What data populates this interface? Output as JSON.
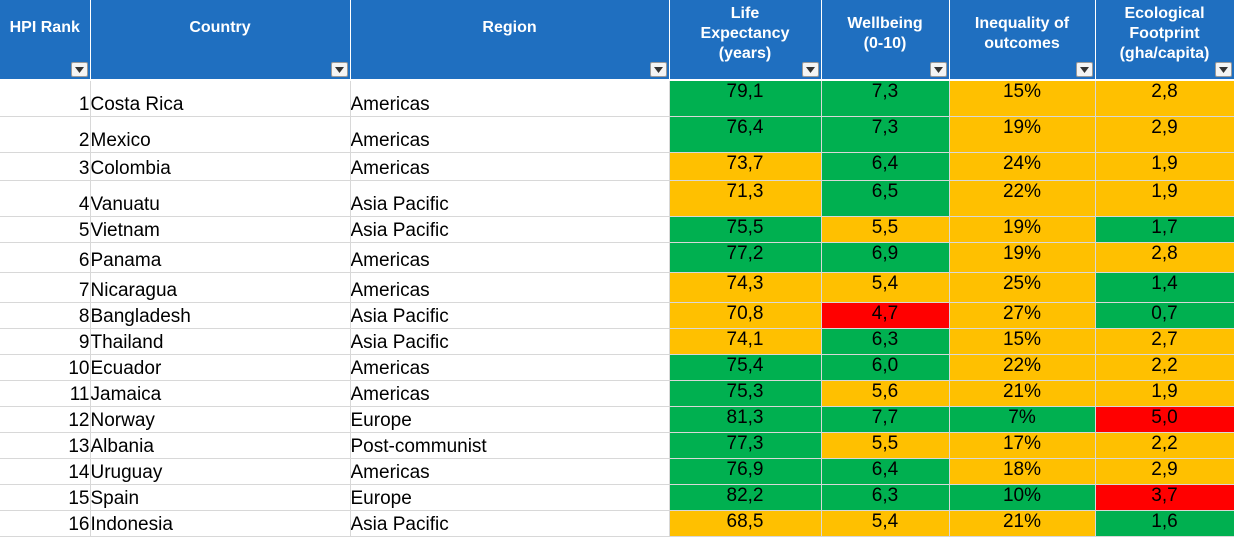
{
  "columns": [
    {
      "key": "rank",
      "label": "HPI Rank"
    },
    {
      "key": "country",
      "label": "Country"
    },
    {
      "key": "region",
      "label": "Region"
    },
    {
      "key": "life",
      "label": "Life Expectancy (years)"
    },
    {
      "key": "wellbeing",
      "label": "Wellbeing (0-10)"
    },
    {
      "key": "inequality",
      "label": "Inequality of outcomes"
    },
    {
      "key": "footprint",
      "label": "Ecological Footprint (gha/capita)"
    }
  ],
  "filter_icon": "dropdown-arrow-icon",
  "colors": {
    "header": "#1f6fc0",
    "good": "#00b050",
    "mid": "#ffc000",
    "bad": "#ff0000"
  },
  "rows": [
    {
      "rank": "1",
      "country": "Costa Rica",
      "region": "Americas",
      "life": "79,1",
      "life_s": "good",
      "wellbeing": "7,3",
      "wellbeing_s": "good",
      "inequality": "15%",
      "inequality_s": "mid",
      "footprint": "2,8",
      "footprint_s": "mid"
    },
    {
      "rank": "2",
      "country": "Mexico",
      "region": "Americas",
      "life": "76,4",
      "life_s": "good",
      "wellbeing": "7,3",
      "wellbeing_s": "good",
      "inequality": "19%",
      "inequality_s": "mid",
      "footprint": "2,9",
      "footprint_s": "mid"
    },
    {
      "rank": "3",
      "country": "Colombia",
      "region": "Americas",
      "life": "73,7",
      "life_s": "mid",
      "wellbeing": "6,4",
      "wellbeing_s": "good",
      "inequality": "24%",
      "inequality_s": "mid",
      "footprint": "1,9",
      "footprint_s": "mid"
    },
    {
      "rank": "4",
      "country": "Vanuatu",
      "region": "Asia Pacific",
      "life": "71,3",
      "life_s": "mid",
      "wellbeing": "6,5",
      "wellbeing_s": "good",
      "inequality": "22%",
      "inequality_s": "mid",
      "footprint": "1,9",
      "footprint_s": "mid"
    },
    {
      "rank": "5",
      "country": "Vietnam",
      "region": "Asia Pacific",
      "life": "75,5",
      "life_s": "good",
      "wellbeing": "5,5",
      "wellbeing_s": "mid",
      "inequality": "19%",
      "inequality_s": "mid",
      "footprint": "1,7",
      "footprint_s": "good"
    },
    {
      "rank": "6",
      "country": "Panama",
      "region": "Americas",
      "life": "77,2",
      "life_s": "good",
      "wellbeing": "6,9",
      "wellbeing_s": "good",
      "inequality": "19%",
      "inequality_s": "mid",
      "footprint": "2,8",
      "footprint_s": "mid"
    },
    {
      "rank": "7",
      "country": "Nicaragua",
      "region": "Americas",
      "life": "74,3",
      "life_s": "mid",
      "wellbeing": "5,4",
      "wellbeing_s": "mid",
      "inequality": "25%",
      "inequality_s": "mid",
      "footprint": "1,4",
      "footprint_s": "good"
    },
    {
      "rank": "8",
      "country": "Bangladesh",
      "region": "Asia Pacific",
      "life": "70,8",
      "life_s": "mid",
      "wellbeing": "4,7",
      "wellbeing_s": "bad",
      "inequality": "27%",
      "inequality_s": "mid",
      "footprint": "0,7",
      "footprint_s": "good"
    },
    {
      "rank": "9",
      "country": "Thailand",
      "region": "Asia Pacific",
      "life": "74,1",
      "life_s": "mid",
      "wellbeing": "6,3",
      "wellbeing_s": "good",
      "inequality": "15%",
      "inequality_s": "mid",
      "footprint": "2,7",
      "footprint_s": "mid"
    },
    {
      "rank": "10",
      "country": "Ecuador",
      "region": "Americas",
      "life": "75,4",
      "life_s": "good",
      "wellbeing": "6,0",
      "wellbeing_s": "good",
      "inequality": "22%",
      "inequality_s": "mid",
      "footprint": "2,2",
      "footprint_s": "mid"
    },
    {
      "rank": "11",
      "country": "Jamaica",
      "region": "Americas",
      "life": "75,3",
      "life_s": "good",
      "wellbeing": "5,6",
      "wellbeing_s": "mid",
      "inequality": "21%",
      "inequality_s": "mid",
      "footprint": "1,9",
      "footprint_s": "mid"
    },
    {
      "rank": "12",
      "country": "Norway",
      "region": "Europe",
      "life": "81,3",
      "life_s": "good",
      "wellbeing": "7,7",
      "wellbeing_s": "good",
      "inequality": "7%",
      "inequality_s": "good",
      "footprint": "5,0",
      "footprint_s": "bad"
    },
    {
      "rank": "13",
      "country": "Albania",
      "region": "Post-communist",
      "life": "77,3",
      "life_s": "good",
      "wellbeing": "5,5",
      "wellbeing_s": "mid",
      "inequality": "17%",
      "inequality_s": "mid",
      "footprint": "2,2",
      "footprint_s": "mid"
    },
    {
      "rank": "14",
      "country": "Uruguay",
      "region": "Americas",
      "life": "76,9",
      "life_s": "good",
      "wellbeing": "6,4",
      "wellbeing_s": "good",
      "inequality": "18%",
      "inequality_s": "mid",
      "footprint": "2,9",
      "footprint_s": "mid"
    },
    {
      "rank": "15",
      "country": "Spain",
      "region": "Europe",
      "life": "82,2",
      "life_s": "good",
      "wellbeing": "6,3",
      "wellbeing_s": "good",
      "inequality": "10%",
      "inequality_s": "good",
      "footprint": "3,7",
      "footprint_s": "bad"
    },
    {
      "rank": "16",
      "country": "Indonesia",
      "region": "Asia Pacific",
      "life": "68,5",
      "life_s": "mid",
      "wellbeing": "5,4",
      "wellbeing_s": "mid",
      "inequality": "21%",
      "inequality_s": "mid",
      "footprint": "1,6",
      "footprint_s": "good"
    }
  ]
}
